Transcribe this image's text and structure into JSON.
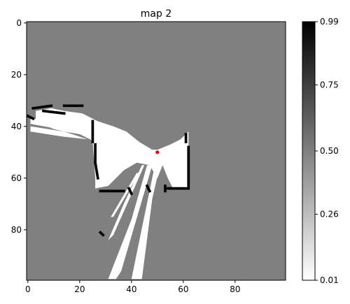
{
  "chart_data": {
    "type": "heatmap",
    "title": "map 2",
    "xlabel": "",
    "ylabel": "",
    "x_ticks": [
      0,
      20,
      40,
      60,
      80
    ],
    "y_ticks": [
      0,
      20,
      40,
      60,
      80
    ],
    "grid_size": 100,
    "xlim": [
      -0.5,
      99.5
    ],
    "ylim": [
      99.5,
      -0.5
    ],
    "background_value": 0.5,
    "colorbar": {
      "ticks": [
        "0.99",
        "0.75",
        "0.50",
        "0.26",
        "0.01"
      ],
      "min": 0.01,
      "max": 0.99,
      "colormap": "gray_r"
    },
    "robot_marker": {
      "x": 50,
      "y": 50,
      "color": "#ff0000"
    },
    "free_polygons": [
      [
        [
          3,
          34
        ],
        [
          9,
          33
        ],
        [
          14,
          34
        ],
        [
          21,
          35
        ],
        [
          27,
          38
        ],
        [
          33,
          40
        ],
        [
          38,
          42
        ],
        [
          43,
          46
        ],
        [
          48,
          49
        ],
        [
          50,
          49
        ],
        [
          55,
          47
        ],
        [
          59,
          45
        ],
        [
          62,
          42
        ],
        [
          62,
          64
        ],
        [
          56,
          64
        ],
        [
          54,
          60
        ],
        [
          52,
          55
        ],
        [
          50,
          60
        ],
        [
          47,
          55
        ],
        [
          42,
          54
        ],
        [
          37,
          57
        ],
        [
          31,
          63
        ],
        [
          26,
          64
        ],
        [
          26,
          60
        ],
        [
          25,
          46
        ],
        [
          24,
          45
        ],
        [
          20,
          43
        ],
        [
          14,
          42
        ],
        [
          10,
          41
        ],
        [
          5,
          39
        ],
        [
          3,
          38
        ]
      ],
      [
        [
          1,
          37
        ],
        [
          12,
          38
        ],
        [
          24,
          42
        ],
        [
          24,
          44
        ],
        [
          12,
          41
        ],
        [
          1,
          39
        ]
      ],
      [
        [
          1,
          40
        ],
        [
          14,
          42
        ],
        [
          23,
          45
        ],
        [
          14,
          44
        ],
        [
          1,
          42
        ]
      ],
      [
        [
          46,
          55
        ],
        [
          48,
          55
        ],
        [
          36,
          96
        ],
        [
          34,
          99
        ],
        [
          31,
          99
        ],
        [
          40,
          76
        ]
      ],
      [
        [
          44,
          55
        ],
        [
          45,
          55
        ],
        [
          33,
          82
        ],
        [
          31,
          84
        ],
        [
          37,
          70
        ]
      ],
      [
        [
          49,
          55
        ],
        [
          51,
          55
        ],
        [
          48,
          68
        ],
        [
          44,
          99
        ],
        [
          40,
          99
        ]
      ],
      [
        [
          42,
          58
        ],
        [
          43,
          58
        ],
        [
          33,
          75
        ],
        [
          32,
          75
        ]
      ]
    ],
    "occupied_segments": [
      [
        [
          2,
          33
        ],
        [
          9,
          32
        ]
      ],
      [
        [
          14,
          32
        ],
        [
          21,
          32
        ]
      ],
      [
        [
          6,
          34
        ],
        [
          14,
          35
        ]
      ],
      [
        [
          25,
          38
        ],
        [
          25,
          46
        ]
      ],
      [
        [
          26,
          47
        ],
        [
          26,
          54
        ]
      ],
      [
        [
          26,
          54
        ],
        [
          27,
          60
        ]
      ],
      [
        [
          28,
          65
        ],
        [
          37,
          65
        ]
      ],
      [
        [
          39,
          64
        ],
        [
          40,
          66
        ]
      ],
      [
        [
          46,
          63
        ],
        [
          47,
          65
        ]
      ],
      [
        [
          61,
          43
        ],
        [
          61,
          46
        ]
      ],
      [
        [
          62,
          48
        ],
        [
          62,
          64
        ]
      ],
      [
        [
          54,
          64
        ],
        [
          61,
          64
        ]
      ],
      [
        [
          53,
          63
        ],
        [
          53,
          65
        ]
      ],
      [
        [
          0,
          36
        ],
        [
          2,
          37
        ]
      ],
      [
        [
          28,
          81
        ],
        [
          29,
          82
        ]
      ]
    ]
  }
}
